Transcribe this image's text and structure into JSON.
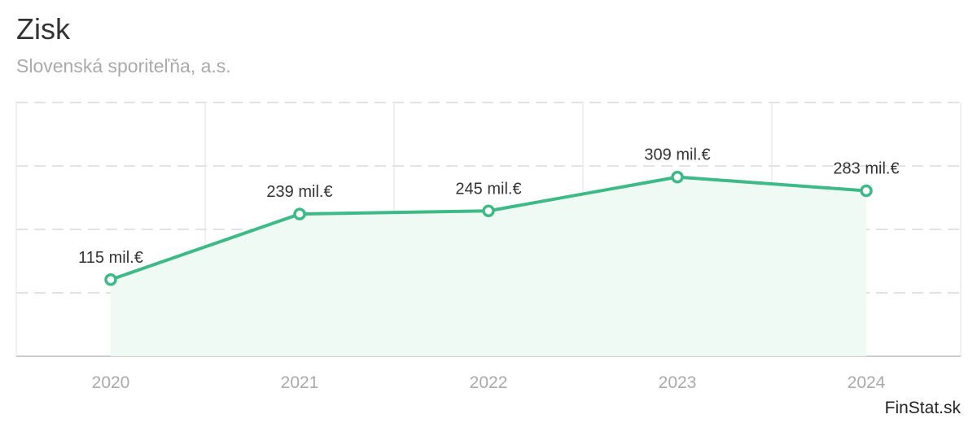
{
  "header": {
    "title": "Zisk",
    "subtitle": "Slovenská sporiteľňa, a.s."
  },
  "brand": "FinStat.sk",
  "colors": {
    "line": "#3dba87",
    "area": "#effaf4",
    "grid": "#e3e3e3",
    "axis": "#cccccc",
    "label": "#333333",
    "tick": "#aaaaaa"
  },
  "chart_data": {
    "type": "area",
    "title": "Zisk",
    "subtitle": "Slovenská sporiteľňa, a.s.",
    "categories": [
      "2020",
      "2021",
      "2022",
      "2023",
      "2024"
    ],
    "values": [
      115,
      239,
      245,
      309,
      283
    ],
    "data_labels": [
      "115 mil.€",
      "239 mil.€",
      "245 mil.€",
      "309 mil.€",
      "283 mil.€"
    ],
    "unit": "mil.€",
    "xlabel": "",
    "ylabel": "",
    "ylim": [
      -30,
      450
    ],
    "grid": true,
    "legend": false
  }
}
